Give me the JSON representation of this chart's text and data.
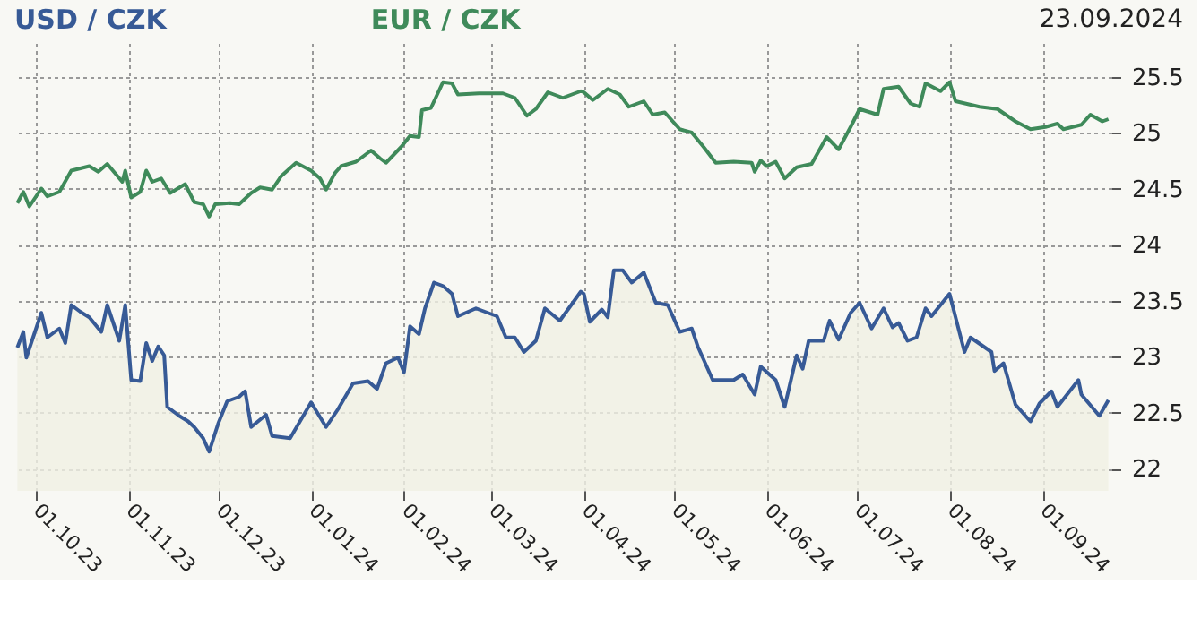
{
  "chart_data": {
    "type": "line",
    "series": [
      {
        "name": "USD / CZK",
        "type": "area",
        "color": "#375a96",
        "x": [
          "2023-09-25",
          "2023-09-27",
          "2023-09-28",
          "2023-10-03",
          "2023-10-05",
          "2023-10-09",
          "2023-10-11",
          "2023-10-13",
          "2023-10-16",
          "2023-10-19",
          "2023-10-23",
          "2023-10-25",
          "2023-10-29",
          "2023-10-31",
          "2023-11-02",
          "2023-11-05",
          "2023-11-07",
          "2023-11-09",
          "2023-11-11",
          "2023-11-13",
          "2023-11-14",
          "2023-11-18",
          "2023-11-21",
          "2023-11-23",
          "2023-11-26",
          "2023-11-28",
          "2023-12-01",
          "2023-12-04",
          "2023-12-08",
          "2023-12-10",
          "2023-12-12",
          "2023-12-17",
          "2023-12-19",
          "2023-12-25",
          "2024-01-01",
          "2024-01-06",
          "2024-01-10",
          "2024-01-15",
          "2024-01-20",
          "2024-01-23",
          "2024-01-26",
          "2024-01-30",
          "2024-02-01",
          "2024-02-03",
          "2024-02-06",
          "2024-02-08",
          "2024-02-11",
          "2024-02-14",
          "2024-02-17",
          "2024-02-19",
          "2024-02-25",
          "2024-03-03",
          "2024-03-06",
          "2024-03-09",
          "2024-03-12",
          "2024-03-16",
          "2024-03-19",
          "2024-03-24",
          "2024-03-31",
          "2024-04-01",
          "2024-04-03",
          "2024-04-07",
          "2024-04-09",
          "2024-04-11",
          "2024-04-14",
          "2024-04-17",
          "2024-04-21",
          "2024-04-25",
          "2024-04-29",
          "2024-05-03",
          "2024-05-07",
          "2024-05-09",
          "2024-05-14",
          "2024-05-21",
          "2024-05-24",
          "2024-05-28",
          "2024-05-30",
          "2024-06-04",
          "2024-06-07",
          "2024-06-11",
          "2024-06-13",
          "2024-06-15",
          "2024-06-20",
          "2024-06-22",
          "2024-06-25",
          "2024-06-29",
          "2024-07-02",
          "2024-07-06",
          "2024-07-10",
          "2024-07-13",
          "2024-07-15",
          "2024-07-18",
          "2024-07-21",
          "2024-07-24",
          "2024-07-26",
          "2024-08-01",
          "2024-08-06",
          "2024-08-08",
          "2024-08-15",
          "2024-08-16",
          "2024-08-19",
          "2024-08-23",
          "2024-08-28",
          "2024-08-31",
          "2024-09-04",
          "2024-09-06",
          "2024-09-13",
          "2024-09-14",
          "2024-09-20",
          "2024-09-23"
        ],
        "values": [
          23.08,
          23.22,
          22.99,
          23.39,
          23.17,
          23.25,
          23.12,
          23.46,
          23.4,
          23.35,
          23.22,
          23.46,
          23.14,
          23.46,
          22.79,
          22.78,
          23.12,
          22.96,
          23.09,
          23.01,
          22.55,
          22.47,
          22.42,
          22.37,
          22.27,
          22.15,
          22.4,
          22.6,
          22.64,
          22.69,
          22.37,
          22.48,
          22.29,
          22.27,
          22.59,
          22.37,
          22.53,
          22.76,
          22.78,
          22.71,
          22.94,
          22.99,
          22.86,
          23.27,
          23.2,
          23.43,
          23.66,
          23.63,
          23.56,
          23.36,
          23.43,
          23.36,
          23.17,
          23.17,
          23.04,
          23.14,
          23.43,
          23.32,
          23.58,
          23.56,
          23.31,
          23.42,
          23.35,
          23.77,
          23.77,
          23.66,
          23.75,
          23.48,
          23.46,
          23.22,
          23.25,
          23.09,
          22.79,
          22.79,
          22.84,
          22.66,
          22.91,
          22.79,
          22.55,
          23.01,
          22.89,
          23.14,
          23.14,
          23.32,
          23.15,
          23.39,
          23.48,
          23.25,
          23.43,
          23.26,
          23.3,
          23.14,
          23.17,
          23.43,
          23.36,
          23.56,
          23.04,
          23.17,
          23.04,
          22.87,
          22.94,
          22.57,
          22.42,
          22.58,
          22.69,
          22.55,
          22.79,
          22.66,
          22.47,
          22.61
        ]
      },
      {
        "name": "EUR / CZK",
        "type": "line",
        "color": "#3f8a5a",
        "x": [
          "2023-09-25",
          "2023-09-27",
          "2023-09-29",
          "2023-10-03",
          "2023-10-05",
          "2023-10-09",
          "2023-10-13",
          "2023-10-19",
          "2023-10-22",
          "2023-10-25",
          "2023-10-30",
          "2023-10-31",
          "2023-11-02",
          "2023-11-05",
          "2023-11-07",
          "2023-11-09",
          "2023-11-12",
          "2023-11-15",
          "2023-11-20",
          "2023-11-23",
          "2023-11-26",
          "2023-11-28",
          "2023-11-30",
          "2023-12-05",
          "2023-12-08",
          "2023-12-12",
          "2023-12-15",
          "2023-12-19",
          "2023-12-22",
          "2023-12-27",
          "2024-01-01",
          "2024-01-04",
          "2024-01-06",
          "2024-01-09",
          "2024-01-11",
          "2024-01-16",
          "2024-01-21",
          "2024-01-24",
          "2024-01-26",
          "2024-01-31",
          "2024-02-03",
          "2024-02-06",
          "2024-02-07",
          "2024-02-10",
          "2024-02-14",
          "2024-02-17",
          "2024-02-19",
          "2024-02-26",
          "2024-03-05",
          "2024-03-09",
          "2024-03-13",
          "2024-03-16",
          "2024-03-20",
          "2024-03-25",
          "2024-03-31",
          "2024-04-01",
          "2024-04-04",
          "2024-04-09",
          "2024-04-13",
          "2024-04-16",
          "2024-04-21",
          "2024-04-24",
          "2024-04-28",
          "2024-05-03",
          "2024-05-07",
          "2024-05-11",
          "2024-05-15",
          "2024-05-21",
          "2024-05-27",
          "2024-05-28",
          "2024-05-30",
          "2024-06-01",
          "2024-06-04",
          "2024-06-07",
          "2024-06-11",
          "2024-06-16",
          "2024-06-21",
          "2024-06-25",
          "2024-06-29",
          "2024-07-02",
          "2024-07-08",
          "2024-07-10",
          "2024-07-15",
          "2024-07-19",
          "2024-07-22",
          "2024-07-24",
          "2024-07-29",
          "2024-08-01",
          "2024-08-03",
          "2024-08-11",
          "2024-08-17",
          "2024-08-23",
          "2024-08-28",
          "2024-09-02",
          "2024-09-06",
          "2024-09-08",
          "2024-09-14",
          "2024-09-17",
          "2024-09-21",
          "2024-09-23"
        ],
        "values": [
          24.37,
          24.47,
          24.34,
          24.5,
          24.43,
          24.47,
          24.66,
          24.7,
          24.65,
          24.72,
          24.56,
          24.66,
          24.42,
          24.47,
          24.66,
          24.56,
          24.59,
          24.46,
          24.54,
          24.38,
          24.36,
          24.25,
          24.36,
          24.37,
          24.36,
          24.46,
          24.51,
          24.49,
          24.61,
          24.73,
          24.66,
          24.59,
          24.49,
          24.64,
          24.7,
          24.74,
          24.84,
          24.77,
          24.73,
          24.87,
          24.97,
          24.96,
          25.2,
          25.22,
          25.45,
          25.44,
          25.34,
          25.35,
          25.35,
          25.31,
          25.15,
          25.21,
          25.36,
          25.31,
          25.37,
          25.36,
          25.29,
          25.39,
          25.34,
          25.23,
          25.28,
          25.16,
          25.18,
          25.03,
          25.0,
          24.87,
          24.73,
          24.74,
          24.73,
          24.65,
          24.75,
          24.7,
          24.74,
          24.59,
          24.69,
          24.72,
          24.96,
          24.85,
          25.05,
          25.21,
          25.16,
          25.39,
          25.41,
          25.26,
          25.23,
          25.44,
          25.37,
          25.45,
          25.28,
          25.23,
          25.21,
          25.1,
          25.03,
          25.05,
          25.08,
          25.03,
          25.07,
          25.16,
          25.1,
          25.12
        ]
      }
    ],
    "xlim": [
      "2023-09-24",
      "2024-09-24"
    ],
    "xticks": [
      {
        "value": "2023-10-01",
        "label": "01.10.23"
      },
      {
        "value": "2023-11-01",
        "label": "01.11.23"
      },
      {
        "value": "2023-12-01",
        "label": "01.12.23"
      },
      {
        "value": "2024-01-01",
        "label": "01.01.24"
      },
      {
        "value": "2024-02-01",
        "label": "01.02.24"
      },
      {
        "value": "2024-03-01",
        "label": "01.03.24"
      },
      {
        "value": "2024-04-01",
        "label": "01.04.24"
      },
      {
        "value": "2024-05-01",
        "label": "01.05.24"
      },
      {
        "value": "2024-06-01",
        "label": "01.06.24"
      },
      {
        "value": "2024-07-01",
        "label": "01.07.24"
      },
      {
        "value": "2024-08-01",
        "label": "01.08.24"
      },
      {
        "value": "2024-09-01",
        "label": "01.09.24"
      }
    ],
    "ylim": [
      21.8,
      25.8
    ],
    "yticks": [
      22,
      22.5,
      23,
      23.5,
      24,
      24.5,
      25,
      25.5
    ],
    "grid": true,
    "legend": "top",
    "marker": "none",
    "annotations": [
      "23.09.2024"
    ]
  }
}
